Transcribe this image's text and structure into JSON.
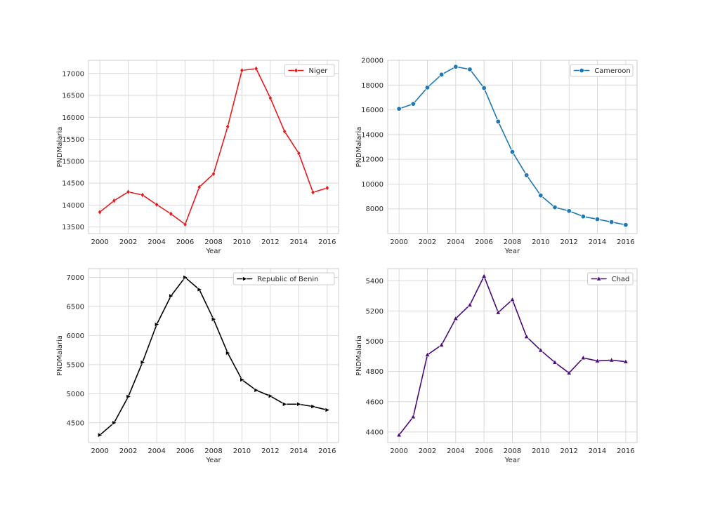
{
  "colors": {
    "background": "#ffffff",
    "grid": "#d9d9d9",
    "frame": "#cccccc",
    "text": "#262626"
  },
  "chart_data": [
    {
      "type": "line",
      "xlabel": "Year",
      "ylabel": "PNDMalaria",
      "xlim": [
        1999.2,
        2016.8
      ],
      "ylim": [
        13350,
        17300
      ],
      "xticks": [
        2000,
        2002,
        2004,
        2006,
        2008,
        2010,
        2012,
        2014,
        2016
      ],
      "yticks": [
        13500,
        14000,
        14500,
        15000,
        15500,
        16000,
        16500,
        17000
      ],
      "grid": true,
      "legend_position": "top-right",
      "series": [
        {
          "name": "Niger",
          "color": "#e41a1c",
          "marker": "diamond",
          "x": [
            2000,
            2001,
            2002,
            2003,
            2004,
            2005,
            2006,
            2007,
            2008,
            2009,
            2010,
            2011,
            2012,
            2013,
            2014,
            2015,
            2016
          ],
          "values": [
            13840,
            14100,
            14300,
            14230,
            14010,
            13800,
            13560,
            14410,
            14710,
            15790,
            17070,
            17110,
            16440,
            15680,
            15180,
            14290,
            14390
          ]
        }
      ]
    },
    {
      "type": "line",
      "xlabel": "Year",
      "ylabel": "PNDMalaria",
      "xlim": [
        1999.2,
        2016.8
      ],
      "ylim": [
        6000,
        20000
      ],
      "xticks": [
        2000,
        2002,
        2004,
        2006,
        2008,
        2010,
        2012,
        2014,
        2016
      ],
      "yticks": [
        8000,
        10000,
        12000,
        14000,
        16000,
        18000,
        20000
      ],
      "grid": true,
      "legend_position": "top-right",
      "series": [
        {
          "name": "Cameroon",
          "color": "#1f77b4",
          "marker": "circle",
          "x": [
            2000,
            2001,
            2002,
            2003,
            2004,
            2005,
            2006,
            2007,
            2008,
            2009,
            2010,
            2011,
            2012,
            2013,
            2014,
            2015,
            2016
          ],
          "values": [
            16080,
            16480,
            17800,
            18850,
            19480,
            19270,
            17760,
            15050,
            12600,
            10720,
            9080,
            8120,
            7830,
            7380,
            7160,
            6930,
            6700
          ]
        }
      ]
    },
    {
      "type": "line",
      "xlabel": "Year",
      "ylabel": "PNDMalaria",
      "xlim": [
        1999.2,
        2016.8
      ],
      "ylim": [
        4160,
        7150
      ],
      "xticks": [
        2000,
        2002,
        2004,
        2006,
        2008,
        2010,
        2012,
        2014,
        2016
      ],
      "yticks": [
        4500,
        5000,
        5500,
        6000,
        6500,
        7000
      ],
      "grid": true,
      "legend_position": "top-right",
      "series": [
        {
          "name": "Republic of Benin",
          "color": "#000000",
          "marker": "triangle-right",
          "x": [
            2000,
            2001,
            2002,
            2003,
            2004,
            2005,
            2006,
            2007,
            2008,
            2009,
            2010,
            2011,
            2012,
            2013,
            2014,
            2015,
            2016
          ],
          "values": [
            4290,
            4500,
            4950,
            5540,
            6190,
            6680,
            7000,
            6790,
            6280,
            5700,
            5240,
            5060,
            4960,
            4820,
            4820,
            4780,
            4720
          ]
        }
      ]
    },
    {
      "type": "line",
      "xlabel": "Year",
      "ylabel": "PNDMalaria",
      "xlim": [
        1999.2,
        2016.8
      ],
      "ylim": [
        4330,
        5480
      ],
      "xticks": [
        2000,
        2002,
        2004,
        2006,
        2008,
        2010,
        2012,
        2014,
        2016
      ],
      "yticks": [
        4400,
        4600,
        4800,
        5000,
        5200,
        5400
      ],
      "grid": true,
      "legend_position": "top-right",
      "series": [
        {
          "name": "Chad",
          "color": "#4b0a7a",
          "marker": "triangle-up",
          "x": [
            2000,
            2001,
            2002,
            2003,
            2004,
            2005,
            2006,
            2007,
            2008,
            2009,
            2010,
            2011,
            2012,
            2013,
            2014,
            2015,
            2016
          ],
          "values": [
            4380,
            4500,
            4910,
            4975,
            5150,
            5240,
            5430,
            5190,
            5275,
            5030,
            4940,
            4860,
            4790,
            4890,
            4870,
            4875,
            4865
          ]
        }
      ]
    }
  ]
}
